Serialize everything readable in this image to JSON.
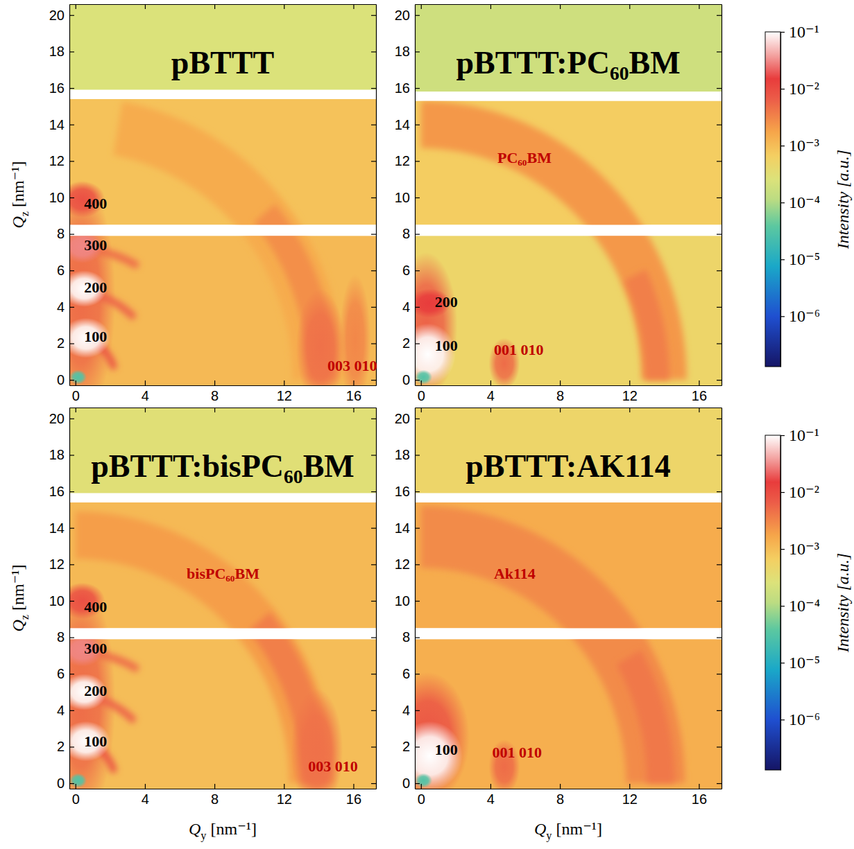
{
  "chart_data": [
    {
      "type": "heatmap",
      "title": "pBTTT",
      "y_label": "Qz [nm⁻¹]",
      "xlim": [
        -0.35,
        17.3
      ],
      "ylim": [
        -0.3,
        20.6
      ],
      "xticks": [
        0,
        4,
        8,
        12,
        16
      ],
      "yticks": [
        0,
        2,
        4,
        6,
        8,
        10,
        12,
        14,
        16,
        18,
        20
      ],
      "gaps": [
        [
          7.9,
          8.5
        ],
        [
          15.4,
          15.9
        ]
      ],
      "background": [
        {
          "qz": [
            -0.3,
            7.9
          ],
          "value": 0.0011
        },
        {
          "qz": [
            8.5,
            15.4
          ],
          "value": 0.0009
        },
        {
          "qz": [
            15.9,
            20.6
          ],
          "value": 0.00025
        }
      ],
      "features": [
        {
          "type": "arc",
          "q": 14.0,
          "width": 3.0,
          "angles": [
            0,
            80
          ],
          "value": 0.0015
        },
        {
          "type": "arc",
          "q": 14.2,
          "width": 1.6,
          "angles": [
            0,
            40
          ],
          "value": 0.0026
        },
        {
          "type": "spot",
          "qy": 14.1,
          "qz": 1.8,
          "wy": 1.4,
          "wz": 3.2,
          "value": 0.0045
        },
        {
          "type": "spot",
          "qy": 16.1,
          "qz": 2.2,
          "wy": 0.9,
          "wz": 3.6,
          "value": 0.003
        },
        {
          "type": "spot",
          "qy": 0.3,
          "qz": 4.5,
          "wy": 2.0,
          "wz": 6.5,
          "value": 0.005
        },
        {
          "type": "arc",
          "q": 2.3,
          "width": 0.4,
          "angles": [
            15,
            90
          ],
          "value": 0.008
        },
        {
          "type": "arc",
          "q": 4.8,
          "width": 0.4,
          "angles": [
            45,
            90
          ],
          "value": 0.006
        },
        {
          "type": "arc",
          "q": 7.2,
          "width": 0.4,
          "angles": [
            60,
            90
          ],
          "value": 0.005
        },
        {
          "type": "spot",
          "qy": 0.4,
          "qz": 9.9,
          "wy": 1.3,
          "wz": 1.0,
          "value": 0.009
        },
        {
          "type": "spot",
          "qy": 0.4,
          "qz": 7.3,
          "wy": 1.2,
          "wz": 0.9,
          "value": 0.03
        },
        {
          "type": "spot",
          "qy": 0.5,
          "qz": 5.0,
          "wy": 1.3,
          "wz": 1.0,
          "value": 0.1
        },
        {
          "type": "spot",
          "qy": 0.6,
          "qz": 2.3,
          "wy": 1.4,
          "wz": 1.1,
          "value": 0.1
        },
        {
          "type": "spot",
          "qy": 0.15,
          "qz": 0.15,
          "wy": 0.5,
          "wz": 0.4,
          "value": 3e-05
        }
      ],
      "annotations": [
        {
          "text": "400",
          "qy": 0.5,
          "qz": 9.6,
          "color": "#000000"
        },
        {
          "text": "300",
          "qy": 0.5,
          "qz": 7.3,
          "color": "#000000"
        },
        {
          "text": "200",
          "qy": 0.5,
          "qz": 5.0,
          "color": "#000000"
        },
        {
          "text": "100",
          "qy": 0.5,
          "qz": 2.3,
          "color": "#000000"
        },
        {
          "text": "003 010",
          "qy": 14.5,
          "qz": 0.7,
          "color": "#c00000"
        }
      ]
    },
    {
      "type": "heatmap",
      "title": "pBTTT:PC₆₀BM",
      "xlim": [
        -0.35,
        17.3
      ],
      "ylim": [
        -0.3,
        20.6
      ],
      "xticks": [
        0,
        4,
        8,
        12,
        16
      ],
      "yticks": [
        0,
        2,
        4,
        6,
        8,
        10,
        12,
        14,
        16,
        18,
        20
      ],
      "gaps": [
        [
          7.9,
          8.5
        ],
        [
          15.3,
          15.8
        ]
      ],
      "background": [
        {
          "qz": [
            -0.3,
            7.9
          ],
          "value": 0.0005
        },
        {
          "qz": [
            8.5,
            15.3
          ],
          "value": 0.0007
        },
        {
          "qz": [
            15.8,
            20.6
          ],
          "value": 0.00018
        }
      ],
      "features": [
        {
          "type": "arc",
          "q": 14.0,
          "width": 2.6,
          "angles": [
            0,
            90
          ],
          "value": 0.0022
        },
        {
          "type": "arc",
          "q": 13.6,
          "width": 1.4,
          "angles": [
            0,
            25
          ],
          "value": 0.0035
        },
        {
          "type": "spot",
          "qy": 0.3,
          "qz": 3.0,
          "wy": 1.8,
          "wz": 4.0,
          "value": 0.006
        },
        {
          "type": "spot",
          "qy": 4.8,
          "qz": 0.9,
          "wy": 0.9,
          "wz": 1.4,
          "value": 0.005
        },
        {
          "type": "spot",
          "qy": 0.5,
          "qz": 4.2,
          "wy": 1.2,
          "wz": 0.8,
          "value": 0.015
        },
        {
          "type": "spot",
          "qy": 0.4,
          "qz": 1.4,
          "wy": 1.6,
          "wz": 1.7,
          "value": 0.1
        },
        {
          "type": "spot",
          "qy": 0.15,
          "qz": 0.15,
          "wy": 0.5,
          "wz": 0.4,
          "value": 3e-05
        }
      ],
      "annotations": [
        {
          "text": "200",
          "qy": 0.8,
          "qz": 4.2,
          "color": "#000000"
        },
        {
          "text": "100",
          "qy": 0.8,
          "qz": 1.8,
          "color": "#000000"
        },
        {
          "text": "001 010",
          "qy": 4.2,
          "qz": 1.55,
          "color": "#c00000"
        },
        {
          "text": "PC₆₀BM",
          "qy": 4.4,
          "qz": 12.1,
          "color": "#c00000"
        }
      ]
    },
    {
      "type": "heatmap",
      "title": "pBTTT:bisPC₆₀BM",
      "x_label": "Qy [nm⁻¹]",
      "y_label": "Qz [nm⁻¹]",
      "xlim": [
        -0.35,
        17.3
      ],
      "ylim": [
        -0.3,
        20.6
      ],
      "xticks": [
        0,
        4,
        8,
        12,
        16
      ],
      "yticks": [
        0,
        2,
        4,
        6,
        8,
        10,
        12,
        14,
        16,
        18,
        20
      ],
      "gaps": [
        [
          7.9,
          8.5
        ],
        [
          15.4,
          15.9
        ]
      ],
      "background": [
        {
          "qz": [
            -0.3,
            7.9
          ],
          "value": 0.001
        },
        {
          "qz": [
            8.5,
            15.4
          ],
          "value": 0.0011
        },
        {
          "qz": [
            15.9,
            20.6
          ],
          "value": 0.0003
        }
      ],
      "features": [
        {
          "type": "arc",
          "q": 13.6,
          "width": 2.6,
          "angles": [
            0,
            90
          ],
          "value": 0.002
        },
        {
          "type": "arc",
          "q": 13.8,
          "width": 1.6,
          "angles": [
            0,
            40
          ],
          "value": 0.0035
        },
        {
          "type": "spot",
          "qy": 13.9,
          "qz": 1.8,
          "wy": 1.5,
          "wz": 3.4,
          "value": 0.0045
        },
        {
          "type": "spot",
          "qy": 0.3,
          "qz": 4.5,
          "wy": 2.0,
          "wz": 6.5,
          "value": 0.005
        },
        {
          "type": "arc",
          "q": 2.3,
          "width": 0.4,
          "angles": [
            15,
            90
          ],
          "value": 0.008
        },
        {
          "type": "arc",
          "q": 4.8,
          "width": 0.4,
          "angles": [
            45,
            90
          ],
          "value": 0.006
        },
        {
          "type": "arc",
          "q": 7.2,
          "width": 0.4,
          "angles": [
            60,
            90
          ],
          "value": 0.005
        },
        {
          "type": "spot",
          "qy": 0.4,
          "qz": 10.0,
          "wy": 1.3,
          "wz": 1.0,
          "value": 0.009
        },
        {
          "type": "spot",
          "qy": 0.4,
          "qz": 7.3,
          "wy": 1.2,
          "wz": 0.9,
          "value": 0.03
        },
        {
          "type": "spot",
          "qy": 0.5,
          "qz": 5.0,
          "wy": 1.3,
          "wz": 1.0,
          "value": 0.1
        },
        {
          "type": "spot",
          "qy": 0.6,
          "qz": 2.3,
          "wy": 1.4,
          "wz": 1.1,
          "value": 0.1
        },
        {
          "type": "spot",
          "qy": 0.15,
          "qz": 0.15,
          "wy": 0.5,
          "wz": 0.4,
          "value": 3e-05
        }
      ],
      "annotations": [
        {
          "text": "400",
          "qy": 0.5,
          "qz": 9.6,
          "color": "#000000"
        },
        {
          "text": "300",
          "qy": 0.5,
          "qz": 7.3,
          "color": "#000000"
        },
        {
          "text": "200",
          "qy": 0.5,
          "qz": 5.0,
          "color": "#000000"
        },
        {
          "text": "100",
          "qy": 0.5,
          "qz": 2.2,
          "color": "#000000"
        },
        {
          "text": "003 010",
          "qy": 13.4,
          "qz": 0.85,
          "color": "#c00000"
        },
        {
          "text": "bisPC₆₀BM",
          "qy": 6.4,
          "qz": 11.4,
          "color": "#c00000"
        }
      ]
    },
    {
      "type": "heatmap",
      "title": "pBTTT:AK114",
      "x_label": "Qy [nm⁻¹]",
      "xlim": [
        -0.35,
        17.3
      ],
      "ylim": [
        -0.3,
        20.6
      ],
      "xticks": [
        0,
        4,
        8,
        12,
        16
      ],
      "yticks": [
        0,
        2,
        4,
        6,
        8,
        10,
        12,
        14,
        16,
        18,
        20
      ],
      "gaps": [
        [
          7.9,
          8.5
        ],
        [
          15.4,
          15.9
        ]
      ],
      "background": [
        {
          "qz": [
            -0.3,
            7.9
          ],
          "value": 0.0014
        },
        {
          "qz": [
            8.5,
            15.4
          ],
          "value": 0.0015
        },
        {
          "qz": [
            15.9,
            20.6
          ],
          "value": 0.0005
        }
      ],
      "features": [
        {
          "type": "arc",
          "q": 13.5,
          "width": 3.4,
          "angles": [
            0,
            90
          ],
          "value": 0.0028
        },
        {
          "type": "arc",
          "q": 13.8,
          "width": 1.6,
          "angles": [
            0,
            30
          ],
          "value": 0.004
        },
        {
          "type": "spot",
          "qy": 0.4,
          "qz": 2.5,
          "wy": 2.4,
          "wz": 3.6,
          "value": 0.008
        },
        {
          "type": "spot",
          "qy": 4.8,
          "qz": 0.9,
          "wy": 0.9,
          "wz": 1.5,
          "value": 0.005
        },
        {
          "type": "spot",
          "qy": 0.5,
          "qz": 1.5,
          "wy": 1.9,
          "wz": 1.9,
          "value": 0.1
        },
        {
          "type": "spot",
          "qy": 0.15,
          "qz": 0.15,
          "wy": 0.5,
          "wz": 0.4,
          "value": 3e-05
        }
      ],
      "annotations": [
        {
          "text": "100",
          "qy": 0.8,
          "qz": 1.75,
          "color": "#000000"
        },
        {
          "text": "001 010",
          "qy": 4.1,
          "qz": 1.6,
          "color": "#c00000"
        },
        {
          "text": "Ak114",
          "qy": 4.2,
          "qz": 11.4,
          "color": "#c00000"
        }
      ]
    }
  ],
  "colorbars": [
    {
      "label": "Intensity [a.u.]",
      "log": true,
      "lim": [
        1.3e-07,
        0.1
      ],
      "ticks": [
        {
          "value": 0.1,
          "label": "10⁻¹"
        },
        {
          "value": 0.01,
          "label": "10⁻²"
        },
        {
          "value": 0.001,
          "label": "10⁻³"
        },
        {
          "value": 0.0001,
          "label": "10⁻⁴"
        },
        {
          "value": 1e-05,
          "label": "10⁻⁵"
        },
        {
          "value": 1e-06,
          "label": "10⁻⁶"
        }
      ]
    },
    {
      "label": "Intensity [a.u.]",
      "log": true,
      "lim": [
        1.3e-07,
        0.1
      ],
      "ticks": [
        {
          "value": 0.1,
          "label": "10⁻¹"
        },
        {
          "value": 0.01,
          "label": "10⁻²"
        },
        {
          "value": 0.001,
          "label": "10⁻³"
        },
        {
          "value": 0.0001,
          "label": "10⁻⁴"
        },
        {
          "value": 1e-05,
          "label": "10⁻⁵"
        },
        {
          "value": 1e-06,
          "label": "10⁻⁶"
        }
      ]
    }
  ]
}
